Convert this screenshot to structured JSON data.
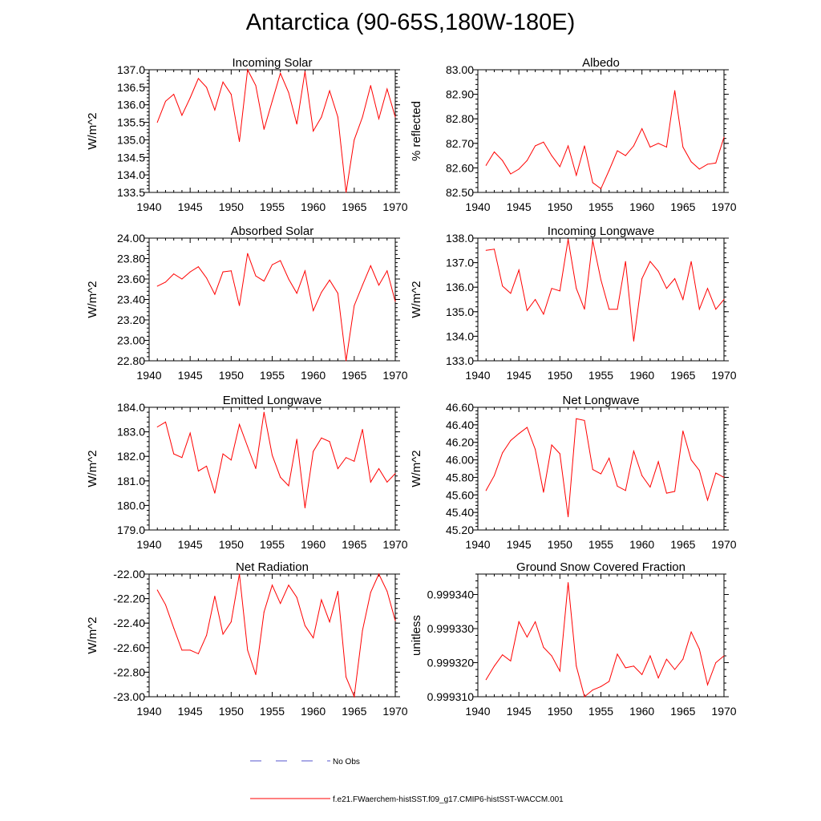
{
  "title": "Antarctica (90-65S,180W-180E)",
  "legend": {
    "items": [
      {
        "label": "No Obs",
        "color": "#5555cc",
        "dash": "dashed"
      },
      {
        "label": "f.e21.FWaerchem-histSST.f09_g17.CMIP6-histSST-WACCM.001",
        "color": "#ff0000",
        "dash": "solid"
      }
    ]
  },
  "chart_data": [
    {
      "type": "line",
      "title": "Incoming Solar",
      "ylabel": "W/m^2",
      "xlabel": "",
      "xlim": [
        1940,
        1970
      ],
      "ylim": [
        133.5,
        137.0
      ],
      "xticks": [
        "1940",
        "1945",
        "1950",
        "1955",
        "1960",
        "1965",
        "1970"
      ],
      "yticks": [
        "137.0",
        "136.5",
        "136.0",
        "135.5",
        "135.0",
        "134.5",
        "134.0",
        "133.5"
      ],
      "series": [
        {
          "color": "#ff0000",
          "x": [
            1941,
            1942,
            1943,
            1944,
            1945,
            1946,
            1947,
            1948,
            1949,
            1950,
            1951,
            1952,
            1953,
            1954,
            1955,
            1956,
            1957,
            1958,
            1959,
            1960,
            1961,
            1962,
            1963,
            1964,
            1965,
            1966,
            1967,
            1968,
            1969,
            1970
          ],
          "y": [
            135.5,
            136.1,
            136.3,
            135.7,
            136.2,
            136.75,
            136.5,
            135.85,
            136.65,
            136.3,
            134.95,
            137.0,
            136.55,
            135.3,
            136.1,
            136.9,
            136.35,
            135.45,
            136.95,
            135.25,
            135.65,
            136.4,
            135.65,
            133.5,
            135.0,
            135.65,
            136.55,
            135.6,
            136.45,
            135.65
          ]
        }
      ]
    },
    {
      "type": "line",
      "title": "Albedo",
      "ylabel": "% reflected",
      "xlabel": "",
      "xlim": [
        1940,
        1970
      ],
      "ylim": [
        82.5,
        83.0
      ],
      "xticks": [
        "1940",
        "1945",
        "1950",
        "1955",
        "1960",
        "1965",
        "1970"
      ],
      "yticks": [
        "83.00",
        "82.90",
        "82.80",
        "82.70",
        "82.60",
        "82.50"
      ],
      "series": [
        {
          "color": "#ff0000",
          "x": [
            1941,
            1942,
            1943,
            1944,
            1945,
            1946,
            1947,
            1948,
            1949,
            1950,
            1951,
            1952,
            1953,
            1954,
            1955,
            1956,
            1957,
            1958,
            1959,
            1960,
            1961,
            1962,
            1963,
            1964,
            1965,
            1966,
            1967,
            1968,
            1969,
            1970
          ],
          "y": [
            82.61,
            82.665,
            82.63,
            82.575,
            82.595,
            82.63,
            82.69,
            82.705,
            82.65,
            82.605,
            82.69,
            82.57,
            82.69,
            82.54,
            82.515,
            82.59,
            82.67,
            82.65,
            82.69,
            82.76,
            82.685,
            82.7,
            82.685,
            82.915,
            82.685,
            82.625,
            82.595,
            82.615,
            82.62,
            82.725
          ]
        }
      ]
    },
    {
      "type": "line",
      "title": "Absorbed Solar",
      "ylabel": "W/m^2",
      "xlabel": "",
      "xlim": [
        1940,
        1970
      ],
      "ylim": [
        22.8,
        24.0
      ],
      "xticks": [
        "1940",
        "1945",
        "1950",
        "1955",
        "1960",
        "1965",
        "1970"
      ],
      "yticks": [
        "24.00",
        "23.80",
        "23.60",
        "23.40",
        "23.20",
        "23.00",
        "22.80"
      ],
      "series": [
        {
          "color": "#ff0000",
          "x": [
            1941,
            1942,
            1943,
            1944,
            1945,
            1946,
            1947,
            1948,
            1949,
            1950,
            1951,
            1952,
            1953,
            1954,
            1955,
            1956,
            1957,
            1958,
            1959,
            1960,
            1961,
            1962,
            1963,
            1964,
            1965,
            1966,
            1967,
            1968,
            1969,
            1970
          ],
          "y": [
            23.53,
            23.57,
            23.65,
            23.6,
            23.67,
            23.72,
            23.61,
            23.45,
            23.67,
            23.68,
            23.34,
            23.85,
            23.63,
            23.58,
            23.74,
            23.78,
            23.6,
            23.46,
            23.68,
            23.29,
            23.47,
            23.59,
            23.46,
            22.8,
            23.34,
            23.54,
            23.73,
            23.54,
            23.68,
            23.38
          ]
        }
      ]
    },
    {
      "type": "line",
      "title": "Incoming Longwave",
      "ylabel": "W/m^2",
      "xlabel": "",
      "xlim": [
        1940,
        1970
      ],
      "ylim": [
        133.0,
        138.0
      ],
      "xticks": [
        "1940",
        "1945",
        "1950",
        "1955",
        "1960",
        "1965",
        "1970"
      ],
      "yticks": [
        "138.0",
        "137.0",
        "136.0",
        "135.0",
        "134.0",
        "133.0"
      ],
      "series": [
        {
          "color": "#ff0000",
          "x": [
            1941,
            1942,
            1943,
            1944,
            1945,
            1946,
            1947,
            1948,
            1949,
            1950,
            1951,
            1952,
            1953,
            1954,
            1955,
            1956,
            1957,
            1958,
            1959,
            1960,
            1961,
            1962,
            1963,
            1964,
            1965,
            1966,
            1967,
            1968,
            1969,
            1970
          ],
          "y": [
            137.5,
            137.55,
            136.05,
            135.75,
            136.7,
            135.05,
            135.5,
            134.9,
            135.95,
            135.85,
            137.95,
            135.95,
            135.1,
            137.9,
            136.3,
            135.1,
            135.1,
            137.05,
            133.8,
            136.35,
            137.05,
            136.65,
            135.95,
            136.35,
            135.5,
            137.05,
            135.1,
            135.95,
            135.1,
            135.5
          ]
        }
      ]
    },
    {
      "type": "line",
      "title": "Emitted Longwave",
      "ylabel": "W/m^2",
      "xlabel": "",
      "xlim": [
        1940,
        1970
      ],
      "ylim": [
        179.0,
        184.0
      ],
      "xticks": [
        "1940",
        "1945",
        "1950",
        "1955",
        "1960",
        "1965",
        "1970"
      ],
      "yticks": [
        "184.0",
        "183.0",
        "182.0",
        "181.0",
        "180.0",
        "179.0"
      ],
      "series": [
        {
          "color": "#ff0000",
          "x": [
            1941,
            1942,
            1943,
            1944,
            1945,
            1946,
            1947,
            1948,
            1949,
            1950,
            1951,
            1952,
            1953,
            1954,
            1955,
            1956,
            1957,
            1958,
            1959,
            1960,
            1961,
            1962,
            1963,
            1964,
            1965,
            1966,
            1967,
            1968,
            1969,
            1970
          ],
          "y": [
            183.2,
            183.4,
            182.1,
            181.95,
            182.95,
            181.4,
            181.6,
            180.5,
            182.1,
            181.85,
            183.3,
            182.4,
            181.5,
            183.8,
            182.05,
            181.15,
            180.8,
            182.7,
            179.9,
            182.2,
            182.75,
            182.6,
            181.5,
            181.95,
            181.8,
            183.1,
            180.95,
            181.5,
            180.95,
            181.3
          ]
        }
      ]
    },
    {
      "type": "line",
      "title": "Net Longwave",
      "ylabel": "W/m^2",
      "xlabel": "",
      "xlim": [
        1940,
        1970
      ],
      "ylim": [
        45.2,
        46.6
      ],
      "xticks": [
        "1940",
        "1945",
        "1950",
        "1955",
        "1960",
        "1965",
        "1970"
      ],
      "yticks": [
        "46.60",
        "46.40",
        "46.20",
        "46.00",
        "45.80",
        "45.60",
        "45.40",
        "45.20"
      ],
      "series": [
        {
          "color": "#ff0000",
          "x": [
            1941,
            1942,
            1943,
            1944,
            1945,
            1946,
            1947,
            1948,
            1949,
            1950,
            1951,
            1952,
            1953,
            1954,
            1955,
            1956,
            1957,
            1958,
            1959,
            1960,
            1961,
            1962,
            1963,
            1964,
            1965,
            1966,
            1967,
            1968,
            1969,
            1970
          ],
          "y": [
            45.65,
            45.82,
            46.08,
            46.22,
            46.3,
            46.37,
            46.12,
            45.63,
            46.17,
            46.07,
            45.35,
            46.47,
            46.45,
            45.89,
            45.84,
            46.02,
            45.7,
            45.65,
            46.1,
            45.82,
            45.69,
            45.98,
            45.62,
            45.64,
            46.33,
            46.0,
            45.88,
            45.54,
            45.85,
            45.8
          ]
        }
      ]
    },
    {
      "type": "line",
      "title": "Net Radiation",
      "ylabel": "W/m^2",
      "xlabel": "",
      "xlim": [
        1940,
        1970
      ],
      "ylim": [
        -23.0,
        -22.0
      ],
      "xticks": [
        "1940",
        "1945",
        "1950",
        "1955",
        "1960",
        "1965",
        "1970"
      ],
      "yticks": [
        "-22.00",
        "-22.20",
        "-22.40",
        "-22.60",
        "-22.80",
        "-23.00"
      ],
      "series": [
        {
          "color": "#ff0000",
          "x": [
            1941,
            1942,
            1943,
            1944,
            1945,
            1946,
            1947,
            1948,
            1949,
            1950,
            1951,
            1952,
            1953,
            1954,
            1955,
            1956,
            1957,
            1958,
            1959,
            1960,
            1961,
            1962,
            1963,
            1964,
            1965,
            1966,
            1967,
            1968,
            1969,
            1970
          ],
          "y": [
            -22.13,
            -22.25,
            -22.44,
            -22.62,
            -22.62,
            -22.65,
            -22.5,
            -22.18,
            -22.49,
            -22.39,
            -22.0,
            -22.62,
            -22.82,
            -22.31,
            -22.09,
            -22.24,
            -22.09,
            -22.19,
            -22.42,
            -22.52,
            -22.21,
            -22.39,
            -22.14,
            -22.84,
            -23.0,
            -22.46,
            -22.15,
            -22.0,
            -22.14,
            -22.38
          ]
        }
      ]
    },
    {
      "type": "line",
      "title": "Ground Snow Covered Fraction",
      "ylabel": "unitless",
      "xlabel": "",
      "xlim": [
        1940,
        1970
      ],
      "ylim": [
        0.99931,
        0.999346
      ],
      "xticks": [
        "1940",
        "1945",
        "1950",
        "1955",
        "1960",
        "1965",
        "1970"
      ],
      "yticks": [
        "0.999340",
        "0.999330",
        "0.999320",
        "0.999310"
      ],
      "series": [
        {
          "color": "#ff0000",
          "x": [
            1941,
            1942,
            1943,
            1944,
            1945,
            1946,
            1947,
            1948,
            1949,
            1950,
            1951,
            1952,
            1953,
            1954,
            1955,
            1956,
            1957,
            1958,
            1959,
            1960,
            1961,
            1962,
            1963,
            1964,
            1965,
            1966,
            1967,
            1968,
            1969,
            1970
          ],
          "y": [
            0.999315,
            0.999319,
            0.9993223,
            0.9993205,
            0.999332,
            0.9993275,
            0.999332,
            0.9993245,
            0.999322,
            0.9993175,
            0.9993435,
            0.999319,
            0.99931,
            0.999312,
            0.999313,
            0.9993145,
            0.9993225,
            0.9993185,
            0.999319,
            0.9993165,
            0.999322,
            0.9993155,
            0.999321,
            0.999318,
            0.999321,
            0.999329,
            0.999324,
            0.9993135,
            0.99932,
            0.999322
          ]
        }
      ]
    }
  ]
}
